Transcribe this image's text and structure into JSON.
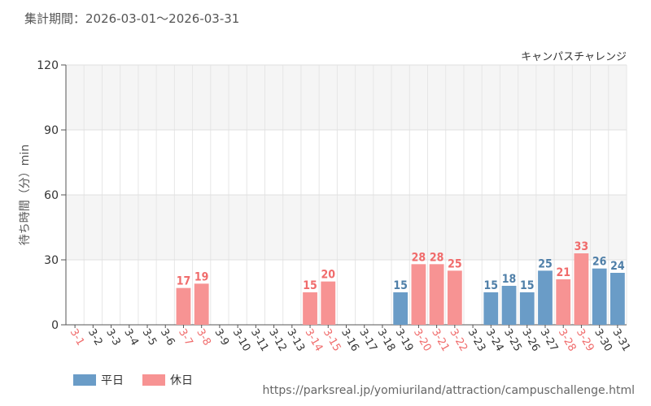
{
  "header": {
    "period_label": "集計期間：2026-03-01～2026-03-31"
  },
  "chart_data": {
    "type": "bar",
    "title": "キャンパスチャレンジ",
    "ylabel": "待ち時間（分）min",
    "ylim": [
      0,
      120
    ],
    "yticks": [
      0,
      30,
      60,
      90,
      120
    ],
    "grid": true,
    "legend_placement": "bottom-left",
    "categories": [
      "3-1",
      "3-2",
      "3-3",
      "3-4",
      "3-5",
      "3-6",
      "3-7",
      "3-8",
      "3-9",
      "3-10",
      "3-11",
      "3-12",
      "3-13",
      "3-14",
      "3-15",
      "3-16",
      "3-17",
      "3-18",
      "3-19",
      "3-20",
      "3-21",
      "3-22",
      "3-23",
      "3-24",
      "3-25",
      "3-26",
      "3-27",
      "3-28",
      "3-29",
      "3-30",
      "3-31"
    ],
    "holiday": [
      true,
      false,
      false,
      false,
      false,
      false,
      true,
      true,
      false,
      false,
      false,
      false,
      false,
      true,
      true,
      false,
      false,
      false,
      false,
      true,
      true,
      true,
      false,
      false,
      false,
      false,
      false,
      true,
      true,
      false,
      false
    ],
    "values": [
      null,
      null,
      null,
      null,
      null,
      null,
      17,
      19,
      null,
      null,
      null,
      null,
      null,
      15,
      20,
      null,
      null,
      null,
      15,
      28,
      28,
      25,
      null,
      15,
      18,
      15,
      25,
      21,
      33,
      26,
      24
    ],
    "series": [
      {
        "name": "平日",
        "color": "#6a9cc7"
      },
      {
        "name": "休日",
        "color": "#f79393"
      }
    ],
    "colors": {
      "weekday_label": "#4f7fa8",
      "holiday_label": "#f06b6b"
    }
  },
  "footer": {
    "source_url": "https://parksreal.jp/yomiuriland/attraction/campuschallenge.html"
  }
}
